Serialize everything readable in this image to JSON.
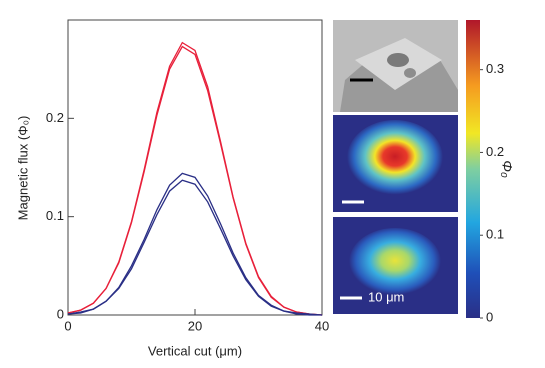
{
  "chart_data": {
    "type": "line",
    "xlabel": "Vertical cut (μm)",
    "ylabel": "Magnetic flux (Φ₀)",
    "x": [
      0,
      2,
      4,
      6,
      8,
      10,
      12,
      14,
      16,
      18,
      20,
      22,
      24,
      26,
      28,
      30,
      32,
      34,
      36,
      38,
      40
    ],
    "series": [
      {
        "color": "#e8203a",
        "values": [
          0.002,
          0.005,
          0.012,
          0.027,
          0.054,
          0.095,
          0.148,
          0.206,
          0.253,
          0.277,
          0.269,
          0.232,
          0.177,
          0.12,
          0.073,
          0.039,
          0.019,
          0.008,
          0.003,
          0.001,
          0.0
        ]
      },
      {
        "color": "#e8203a",
        "values": [
          0.002,
          0.005,
          0.012,
          0.027,
          0.053,
          0.094,
          0.146,
          0.203,
          0.25,
          0.273,
          0.265,
          0.228,
          0.175,
          0.119,
          0.072,
          0.038,
          0.018,
          0.008,
          0.003,
          0.001,
          0.0
        ]
      },
      {
        "color": "#2a2f86",
        "values": [
          0.001,
          0.003,
          0.006,
          0.014,
          0.028,
          0.05,
          0.077,
          0.107,
          0.132,
          0.144,
          0.14,
          0.121,
          0.093,
          0.063,
          0.038,
          0.02,
          0.01,
          0.004,
          0.002,
          0.001,
          0.0
        ]
      },
      {
        "color": "#2a2f86",
        "values": [
          0.001,
          0.002,
          0.006,
          0.014,
          0.027,
          0.047,
          0.074,
          0.102,
          0.126,
          0.137,
          0.133,
          0.115,
          0.088,
          0.06,
          0.036,
          0.019,
          0.009,
          0.004,
          0.001,
          0.0,
          0.0
        ]
      }
    ],
    "xlim": [
      0,
      40
    ],
    "xticks": [
      0,
      20,
      40
    ],
    "ylim": [
      0,
      0.3
    ],
    "yticks": [
      0,
      0.1,
      0.2
    ],
    "colorbar": {
      "label": "Φ₀",
      "lim": [
        0,
        0.36
      ],
      "ticks": [
        0,
        0.1,
        0.2,
        0.3
      ]
    },
    "annotations": [
      "10 μm"
    ]
  }
}
